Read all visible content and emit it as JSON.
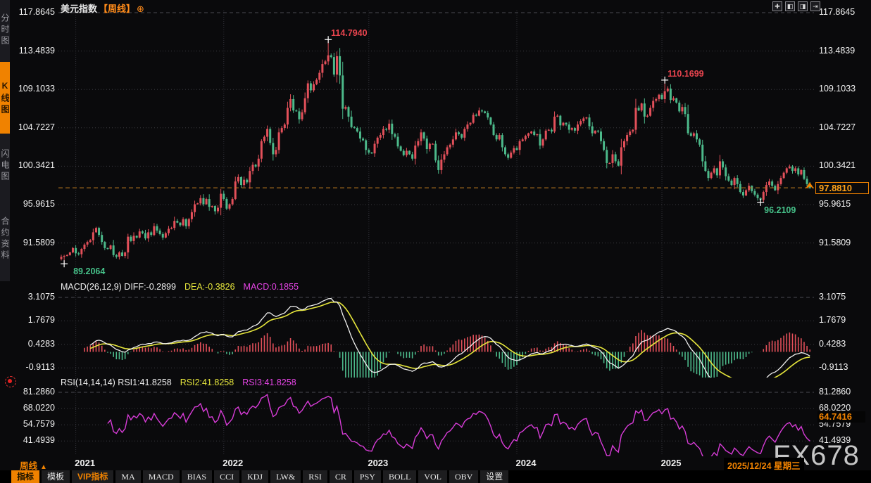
{
  "window": {
    "symbol": "美元指数",
    "period_tag": "【周线】",
    "target_icon": "⊕"
  },
  "sidebar": {
    "items": [
      {
        "label": "分时图",
        "active": false
      },
      {
        "label": "K线图",
        "active": true
      },
      {
        "label": "闪电图",
        "active": false
      },
      {
        "label": "合约资料",
        "active": false
      }
    ]
  },
  "pane_controls": [
    {
      "name": "pan-move-icon",
      "glyph": "✚"
    },
    {
      "name": "zoom-x-axis-icon",
      "glyph": "◧"
    },
    {
      "name": "zoom-y-axis-icon",
      "glyph": "◨"
    },
    {
      "name": "shift-right-icon",
      "glyph": "⇥"
    }
  ],
  "main_panel": {
    "y_ticks": [
      "117.8645",
      "113.4839",
      "109.1033",
      "104.7227",
      "100.3421",
      "95.9615",
      "91.5809"
    ],
    "current_price_label": "97.8810",
    "markers": {
      "high1_label": "114.7940",
      "high2_label": "110.1699",
      "low1_label": "89.2064",
      "low2_label": "96.2109"
    }
  },
  "macd_panel": {
    "header_white": "MACD(26,12,9) DIFF:-0.2899",
    "header_yellow": "DEA:-0.3826",
    "header_magenta": "MACD:0.1855",
    "y_ticks": [
      "3.1075",
      "1.7679",
      "0.4283",
      "-0.9113"
    ]
  },
  "rsi_panel": {
    "header_white": "RSI(14,14,14) RSI1:41.8258",
    "header_yellow": "RSI2:41.8258",
    "header_magenta": "RSI3:41.8258",
    "y_ticks": [
      "81.2860",
      "68.0220",
      "54.7579",
      "41.4939"
    ],
    "highlight_label": "64.7416"
  },
  "x_axis": {
    "timeframe_label": "周线",
    "up_arrow": "▲",
    "years": [
      "2021",
      "2022",
      "2023",
      "2024",
      "2025"
    ],
    "date_label": "2025/12/24 星期三"
  },
  "watermark": "FX678",
  "toolbar": {
    "items": [
      {
        "label": "指标",
        "style": "active",
        "cjk": true
      },
      {
        "label": "模板",
        "cjk": true
      },
      {
        "label": "VIP指标",
        "style": "vip",
        "cjk": true
      },
      {
        "label": "MA"
      },
      {
        "label": "MACD"
      },
      {
        "label": "BIAS"
      },
      {
        "label": "CCI"
      },
      {
        "label": "KDJ"
      },
      {
        "label": "LW&"
      },
      {
        "label": "RSI"
      },
      {
        "label": "CR"
      },
      {
        "label": "PSY"
      },
      {
        "label": "BOLL"
      },
      {
        "label": "VOL"
      },
      {
        "label": "OBV"
      },
      {
        "label": "设置",
        "cjk": true
      }
    ]
  },
  "colors": {
    "up": "#e3505a",
    "down": "#4cb98a",
    "grid": "#3a3a40",
    "grid_dash": "#4a4a52",
    "vgrid": "#32323a",
    "orange": "#f08200",
    "orange_line": "#c87f1f",
    "yellow": "#e6e63c",
    "magenta": "#d83cd8",
    "white_line": "#f0f0f0",
    "marker_hi": "#e8444e",
    "marker_lo": "#46c28a"
  },
  "chart_data": {
    "type": "candlestick",
    "symbol": "美元指数",
    "period": "weekly",
    "title": "美元指数【周线】",
    "x_years": [
      "2021",
      "2022",
      "2023",
      "2024",
      "2025"
    ],
    "year_line_indices": [
      5,
      56,
      106,
      157,
      207
    ],
    "price_axis": {
      "ticks": [
        117.8645,
        113.4839,
        109.1033,
        104.7227,
        100.3421,
        95.9615,
        91.5809
      ]
    },
    "closes": [
      90.0,
      90.1,
      90.2,
      90.5,
      91.0,
      90.4,
      90.3,
      90.9,
      91.4,
      91.7,
      91.9,
      92.8,
      93.3,
      92.5,
      91.7,
      91.0,
      90.9,
      91.3,
      90.2,
      90.0,
      90.5,
      90.1,
      90.5,
      92.3,
      91.8,
      92.4,
      92.2,
      92.9,
      92.7,
      92.1,
      92.8,
      92.5,
      93.5,
      93.0,
      92.6,
      92.2,
      92.7,
      93.2,
      93.3,
      94.1,
      93.9,
      93.6,
      94.3,
      93.5,
      94.3,
      95.1,
      96.0,
      96.1,
      96.7,
      96.0,
      96.6,
      95.7,
      95.8,
      95.2,
      95.6,
      97.2,
      96.6,
      95.5,
      96.0,
      96.6,
      98.6,
      99.1,
      98.2,
      98.8,
      98.5,
      99.8,
      100.5,
      100.3,
      101.2,
      103.2,
      103.7,
      104.6,
      103.0,
      101.7,
      102.2,
      104.2,
      104.7,
      105.1,
      107.0,
      108.0,
      106.7,
      106.6,
      105.7,
      106.5,
      108.1,
      109.8,
      109.0,
      109.7,
      110.2,
      111.0,
      112.0,
      112.3,
      113.0,
      112.8,
      110.8,
      112.9,
      110.7,
      106.9,
      107.1,
      106.0,
      104.8,
      104.7,
      104.3,
      103.5,
      103.3,
      102.2,
      101.9,
      101.8,
      102.9,
      103.6,
      103.9,
      104.6,
      104.5,
      105.2,
      104.0,
      103.7,
      102.6,
      102.1,
      101.6,
      102.1,
      101.7,
      101.2,
      102.7,
      103.2,
      104.2,
      103.5,
      102.3,
      102.9,
      102.9,
      101.0,
      99.9,
      101.1,
      101.7,
      102.5,
      102.8,
      103.4,
      104.2,
      104.0,
      103.6,
      104.6,
      105.1,
      105.3,
      106.2,
      106.1,
      106.7,
      106.6,
      106.4,
      105.9,
      105.1,
      103.9,
      103.4,
      103.9,
      102.5,
      101.7,
      101.3,
      101.9,
      102.4,
      102.2,
      103.2,
      103.4,
      103.8,
      104.1,
      104.3,
      103.9,
      104.0,
      102.7,
      103.4,
      104.4,
      104.5,
      104.3,
      106.0,
      106.1,
      105.0,
      105.3,
      105.1,
      104.5,
      104.7,
      104.4,
      105.1,
      105.5,
      105.8,
      105.9,
      104.9,
      104.1,
      104.4,
      104.3,
      103.2,
      102.2,
      100.7,
      100.7,
      101.7,
      100.9,
      100.4,
      102.5,
      103.2,
      103.9,
      104.3,
      104.5,
      107.0,
      106.7,
      107.5,
      106.0,
      106.1,
      107.0,
      107.8,
      108.0,
      108.5,
      108.0,
      108.9,
      109.2,
      107.9,
      108.1,
      107.6,
      106.6,
      107.1,
      106.3,
      104.1,
      103.8,
      104.1,
      103.4,
      102.8,
      100.9,
      99.8,
      99.0,
      99.6,
      100.1,
      99.3,
      100.9,
      100.2,
      99.2,
      98.7,
      98.2,
      99.0,
      98.3,
      97.4,
      97.0,
      97.6,
      98.1,
      97.5,
      97.1,
      96.7,
      96.5,
      97.4,
      98.2,
      98.6,
      98.1,
      97.6,
      98.3,
      99.0,
      99.6,
      100.1,
      100.3,
      99.8,
      100.1,
      99.4,
      99.9,
      98.9,
      98.3,
      97.881
    ],
    "markers": {
      "high1": {
        "index": 92,
        "value": 114.794
      },
      "high2": {
        "index": 208,
        "value": 110.1699
      },
      "low1": {
        "index": 1,
        "value": 89.2064
      },
      "low2": {
        "index": 241,
        "value": 96.2109
      }
    },
    "current_price": 97.881,
    "macd": {
      "params": [
        26,
        12,
        9
      ],
      "diff": -0.2899,
      "dea": -0.3826,
      "macd": 0.1855,
      "ticks": [
        3.1075,
        1.7679,
        0.4283,
        -0.9113
      ]
    },
    "rsi": {
      "params": [
        14,
        14,
        14
      ],
      "rsi1": 41.8258,
      "rsi2": 41.8258,
      "rsi3": 41.8258,
      "ticks": [
        81.286,
        68.022,
        54.7579,
        41.4939
      ],
      "axis_highlight": 64.7416
    }
  }
}
